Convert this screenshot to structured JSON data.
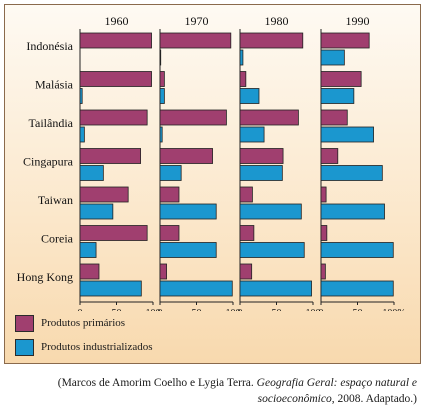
{
  "colors": {
    "primary": "#a03f6f",
    "industrial": "#1b97cf",
    "outline": "#222222"
  },
  "chart_data": {
    "type": "bar",
    "orientation": "horizontal",
    "panels": [
      "1960",
      "1970",
      "1980",
      "1990"
    ],
    "categories": [
      "Indonésia",
      "Malásia",
      "Tailândia",
      "Cingapura",
      "Taiwan",
      "Coreia",
      "Hong Kong"
    ],
    "x_ticks": [
      "0",
      "50",
      "100",
      "0",
      "50",
      "100",
      "0",
      "50",
      "100",
      "0",
      "50",
      "100%"
    ],
    "xlim": [
      0,
      100
    ],
    "series": [
      {
        "name": "Produtos primários",
        "values": [
          [
            98,
            98,
            92,
            83,
            66,
            92,
            26
          ],
          [
            97,
            6,
            91,
            72,
            26,
            26,
            9
          ],
          [
            86,
            8,
            80,
            59,
            17,
            19,
            16
          ],
          [
            66,
            55,
            36,
            23,
            7,
            8,
            6
          ]
        ]
      },
      {
        "name": "Produtos industrializados",
        "values": [
          [
            0,
            3,
            6,
            32,
            45,
            22,
            84
          ],
          [
            1,
            6,
            3,
            29,
            77,
            77,
            99
          ],
          [
            4,
            26,
            33,
            58,
            84,
            88,
            98
          ],
          [
            32,
            45,
            72,
            84,
            87,
            99,
            99
          ]
        ]
      }
    ]
  },
  "legend": {
    "primary_label": "Produtos primários",
    "industrial_label": "Produtos industrializados"
  },
  "caption": {
    "prefix": "(Marcos de Amorim Coelho e Lygia Terra. ",
    "title": "Geografia Geral: espaço natural e socioeconômico",
    "suffix": ", 2008. Adaptado.)"
  }
}
